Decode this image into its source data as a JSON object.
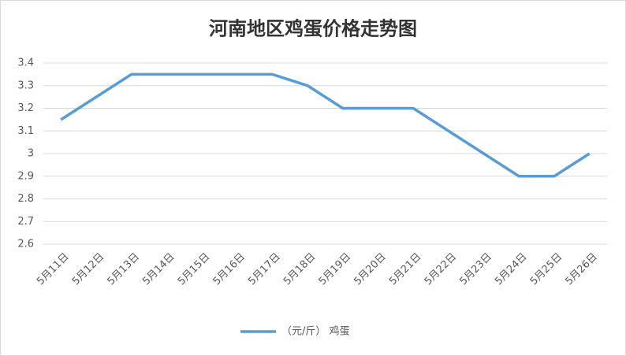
{
  "chart_data": {
    "type": "line",
    "title": "河南地区鸡蛋价格走势图",
    "categories": [
      "5月11日",
      "5月12日",
      "5月13日",
      "5月14日",
      "5月15日",
      "5月16日",
      "5月17日",
      "5月18日",
      "5月19日",
      "5月20日",
      "5月21日",
      "5月22日",
      "5月23日",
      "5月24日",
      "5月25日",
      "5月26日"
    ],
    "series": [
      {
        "name": "（元/斤） 鸡蛋",
        "color": "#5b9bd5",
        "values": [
          3.15,
          3.25,
          3.35,
          3.35,
          3.35,
          3.35,
          3.35,
          3.3,
          3.2,
          3.2,
          3.2,
          3.1,
          3.0,
          2.9,
          2.9,
          3.0
        ]
      }
    ],
    "ylim": [
      2.6,
      3.4
    ],
    "yticks": [
      2.6,
      2.7,
      2.8,
      2.9,
      3,
      3.1,
      3.2,
      3.3,
      3.4
    ],
    "grid": true,
    "legend": "bottom"
  }
}
